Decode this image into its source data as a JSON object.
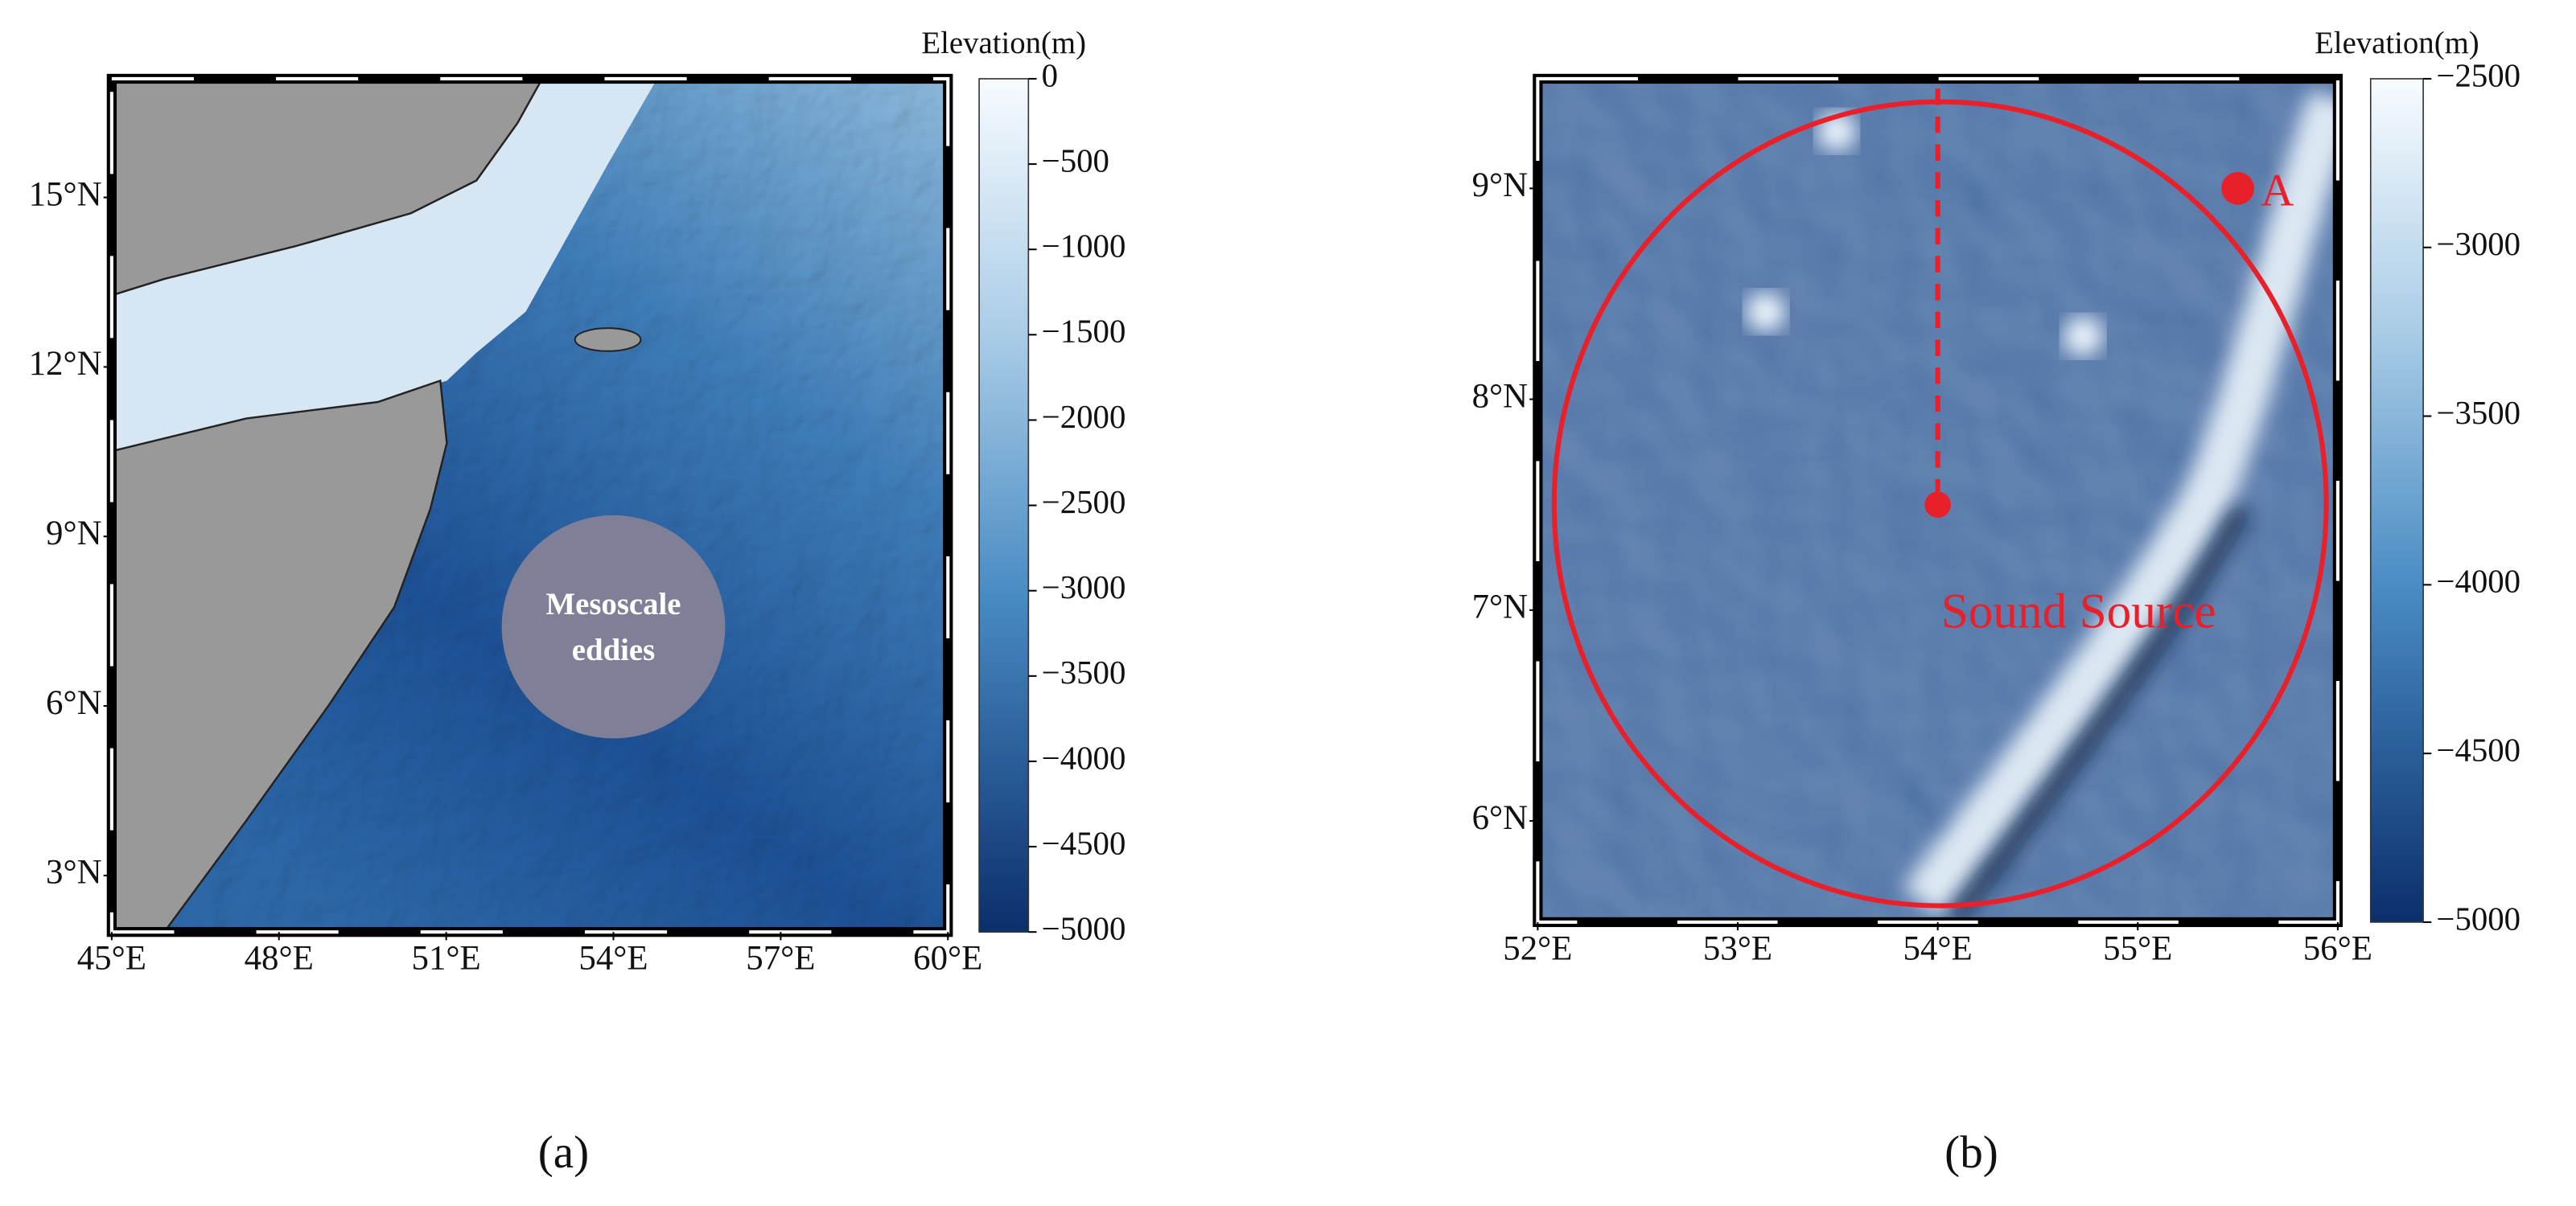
{
  "panels": [
    {
      "caption": "(a)",
      "xlim": [
        45,
        60
      ],
      "ylim": [
        2,
        17.1
      ],
      "xticks": [
        {
          "value": 45,
          "label": "45°E"
        },
        {
          "value": 48,
          "label": "48°E"
        },
        {
          "value": 51,
          "label": "51°E"
        },
        {
          "value": 54,
          "label": "54°E"
        },
        {
          "value": 57,
          "label": "57°E"
        },
        {
          "value": 60,
          "label": "60°E"
        }
      ],
      "yticks": [
        {
          "value": 3,
          "label": "3°N"
        },
        {
          "value": 6,
          "label": "6°N"
        },
        {
          "value": 9,
          "label": "9°N"
        },
        {
          "value": 12,
          "label": "12°N"
        },
        {
          "value": 15,
          "label": "15°N"
        }
      ],
      "colorbar": {
        "title": "Elevation(m)",
        "lim": [
          -5000,
          0
        ],
        "ticks": [
          0,
          {
            "value": -500,
            "label": "−500"
          },
          {
            "value": -1000,
            "label": "−1000"
          },
          {
            "value": -1500,
            "label": "−1500"
          },
          {
            "value": -2000,
            "label": "−2000"
          },
          {
            "value": -2500,
            "label": "−2500"
          },
          {
            "value": -3000,
            "label": "−3000"
          },
          {
            "value": -3500,
            "label": "−3500"
          },
          {
            "value": -4000,
            "label": "−4000"
          },
          {
            "value": -4500,
            "label": "−4500"
          },
          {
            "value": -5000,
            "label": "−5000"
          }
        ]
      },
      "eddy": {
        "lines": [
          "Mesoscale",
          "eddies"
        ],
        "lon": 54,
        "lat": 7.4
      }
    },
    {
      "caption": "(b)",
      "xlim": [
        52,
        56
      ],
      "ylim": [
        5.52,
        9.52
      ],
      "xticks": [
        {
          "value": 52,
          "label": "52°E"
        },
        {
          "value": 53,
          "label": "53°E"
        },
        {
          "value": 54,
          "label": "54°E"
        },
        {
          "value": 55,
          "label": "55°E"
        },
        {
          "value": 56,
          "label": "56°E"
        }
      ],
      "yticks": [
        {
          "value": 6,
          "label": "6°N"
        },
        {
          "value": 7,
          "label": "7°N"
        },
        {
          "value": 8,
          "label": "8°N"
        },
        {
          "value": 9,
          "label": "9°N"
        }
      ],
      "colorbar": {
        "title": "Elevation(m)",
        "lim": [
          -5000,
          -2500
        ],
        "ticks": [
          {
            "value": -2500,
            "label": "−2500"
          },
          {
            "value": -3000,
            "label": "−3000"
          },
          {
            "value": -3500,
            "label": "−3500"
          },
          {
            "value": -4000,
            "label": "−4000"
          },
          {
            "value": -4500,
            "label": "−4500"
          },
          {
            "value": -5000,
            "label": "−5000"
          }
        ]
      },
      "source": {
        "label": "Sound Source",
        "lon": 54,
        "lat": 7.5
      },
      "point": {
        "label": "A",
        "lon": 55.5,
        "lat": 9
      }
    }
  ]
}
